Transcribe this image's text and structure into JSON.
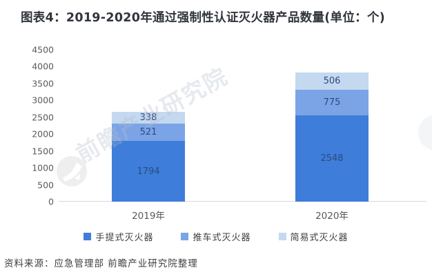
{
  "title": "图表4：2019-2020年通过强制性认证灭火器产品数量(单位：个)",
  "source": "资料来源：应急管理部 前瞻产业研究院整理",
  "watermark": {
    "text": "前瞻产业研究院"
  },
  "colors": {
    "portable": "#3e7dda",
    "cart": "#7ba4e6",
    "simple": "#c4d8f0",
    "bar_label": "#2b4b7e",
    "axis_text": "#595959"
  },
  "chart_data": {
    "type": "bar",
    "stacked": true,
    "title": "图表4：2019-2020年通过强制性认证灭火器产品数量(单位：个)",
    "categories": [
      "2019年",
      "2020年"
    ],
    "series": [
      {
        "name": "手提式灭火器",
        "color": "#3e7dda",
        "values": [
          1794,
          2548
        ]
      },
      {
        "name": "推车式灭火器",
        "color": "#7ba4e6",
        "values": [
          521,
          775
        ]
      },
      {
        "name": "简易式灭火器",
        "color": "#c4d8f0",
        "values": [
          338,
          506
        ]
      }
    ],
    "totals": [
      2653,
      3829
    ],
    "xlabel": "",
    "ylabel": "",
    "ylim": [
      0,
      4500
    ],
    "ytick_step": 500,
    "yticks": [
      "4500",
      "4000",
      "3500",
      "3000",
      "2500",
      "2000",
      "1500",
      "1000",
      "500",
      "0"
    ],
    "grid": false,
    "legend_position": "bottom"
  }
}
